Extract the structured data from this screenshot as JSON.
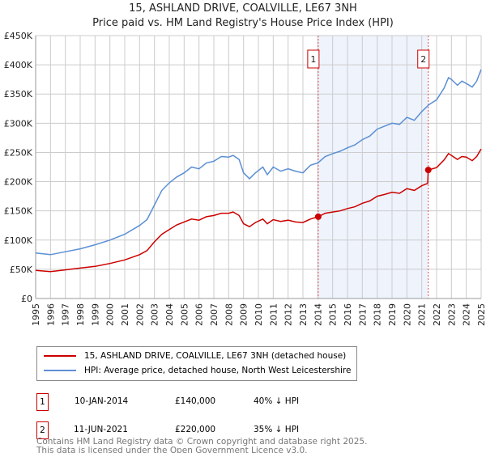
{
  "title": "15, ASHLAND DRIVE, COALVILLE, LE67 3NH",
  "subtitle": "Price paid vs. HM Land Registry's House Price Index (HPI)",
  "colors": {
    "property": "#cc0000",
    "hpi": "#5b8fd4",
    "shade": "#eef3fc",
    "grid": "#cccccc"
  },
  "chart_data": {
    "type": "line",
    "title": "15, ASHLAND DRIVE, COALVILLE, LE67 3NH",
    "xlim": [
      1995,
      2025
    ],
    "ylim": [
      0,
      450000
    ],
    "yticks": [
      0,
      50000,
      100000,
      150000,
      200000,
      250000,
      300000,
      350000,
      400000,
      450000
    ],
    "ytick_labels": [
      "£0",
      "£50K",
      "£100K",
      "£150K",
      "£200K",
      "£250K",
      "£300K",
      "£350K",
      "£400K",
      "£450K"
    ],
    "xticks": [
      "1995",
      "1996",
      "1997",
      "1998",
      "1999",
      "2000",
      "2001",
      "2002",
      "2003",
      "2004",
      "2005",
      "2006",
      "2007",
      "2008",
      "2009",
      "2010",
      "2011",
      "2012",
      "2013",
      "2014",
      "2015",
      "2016",
      "2017",
      "2018",
      "2019",
      "2020",
      "2021",
      "2022",
      "2023",
      "2024",
      "2025"
    ],
    "grid": true,
    "series": [
      {
        "name": "15, ASHLAND DRIVE, COALVILLE, LE67 3NH (detached house)",
        "color": "#cc0000",
        "x": [
          1995,
          1996,
          1997,
          1998,
          1999,
          2000,
          2001,
          2002,
          2002.5,
          2003,
          2003.5,
          2004,
          2004.5,
          2005,
          2005.5,
          2006,
          2006.5,
          2007,
          2007.5,
          2008,
          2008.3,
          2008.7,
          2009,
          2009.4,
          2009.8,
          2010.3,
          2010.6,
          2011,
          2011.5,
          2012,
          2012.5,
          2013,
          2013.5,
          2014.03,
          2014.5,
          2015,
          2015.5,
          2016,
          2016.5,
          2017,
          2017.5,
          2018,
          2018.5,
          2019,
          2019.5,
          2020,
          2020.5,
          2021,
          2021.4,
          2021.44,
          2022,
          2022.5,
          2022.8,
          2023,
          2023.4,
          2023.7,
          2024,
          2024.4,
          2024.7,
          2025
        ],
        "y": [
          48000,
          46000,
          49000,
          52000,
          55000,
          60000,
          66000,
          75000,
          82000,
          97000,
          110000,
          118000,
          126000,
          131000,
          136000,
          134000,
          140000,
          142000,
          146000,
          146000,
          148000,
          142000,
          128000,
          123000,
          130000,
          136000,
          128000,
          135000,
          132000,
          134000,
          131000,
          130000,
          136000,
          140000,
          146000,
          148000,
          150000,
          154000,
          157000,
          163000,
          167000,
          175000,
          178000,
          182000,
          180000,
          188000,
          185000,
          193000,
          197000,
          220000,
          224000,
          237000,
          248000,
          245000,
          238000,
          243000,
          242000,
          236000,
          243000,
          256000
        ]
      },
      {
        "name": "HPI: Average price, detached house, North West Leicestershire",
        "color": "#5b8fd4",
        "x": [
          1995,
          1996,
          1997,
          1998,
          1999,
          2000,
          2001,
          2002,
          2002.5,
          2003,
          2003.5,
          2004,
          2004.5,
          2005,
          2005.5,
          2006,
          2006.5,
          2007,
          2007.5,
          2008,
          2008.3,
          2008.7,
          2009,
          2009.4,
          2009.8,
          2010.3,
          2010.6,
          2011,
          2011.5,
          2012,
          2012.5,
          2013,
          2013.5,
          2014,
          2014.5,
          2015,
          2015.5,
          2016,
          2016.5,
          2017,
          2017.5,
          2018,
          2018.5,
          2019,
          2019.5,
          2020,
          2020.5,
          2021,
          2021.5,
          2022,
          2022.5,
          2022.8,
          2023,
          2023.4,
          2023.7,
          2024,
          2024.4,
          2024.7,
          2025
        ],
        "y": [
          78000,
          75000,
          80000,
          85000,
          92000,
          100000,
          110000,
          125000,
          135000,
          160000,
          185000,
          198000,
          208000,
          215000,
          225000,
          222000,
          232000,
          235000,
          243000,
          242000,
          245000,
          238000,
          215000,
          205000,
          215000,
          225000,
          212000,
          225000,
          218000,
          222000,
          218000,
          215000,
          228000,
          232000,
          243000,
          248000,
          252000,
          258000,
          263000,
          272000,
          278000,
          290000,
          295000,
          300000,
          298000,
          310000,
          305000,
          320000,
          332000,
          340000,
          360000,
          378000,
          375000,
          365000,
          372000,
          368000,
          362000,
          372000,
          392000
        ]
      }
    ],
    "sales": [
      {
        "id": "1",
        "x": 2014.03,
        "price": 140000,
        "date": "10-JAN-2014",
        "price_label": "£140,000",
        "hpi_diff": "40% ↓ HPI"
      },
      {
        "id": "2",
        "x": 2021.44,
        "price": 220000,
        "date": "11-JUN-2021",
        "price_label": "£220,000",
        "hpi_diff": "35% ↓ HPI"
      }
    ],
    "legend_position": "bottom"
  },
  "footer": {
    "line1": "Contains HM Land Registry data © Crown copyright and database right 2025.",
    "line2": "This data is licensed under the Open Government Licence v3.0."
  }
}
